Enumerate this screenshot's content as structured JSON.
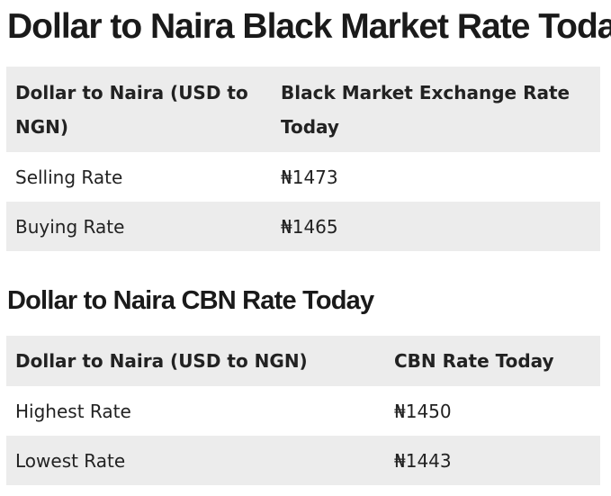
{
  "heading_black_market": "Dollar to Naira Black Market Rate Today",
  "black_market_table": {
    "headers": [
      "Dollar to Naira (USD to NGN)",
      "Black Market Exchange Rate Today"
    ],
    "rows": [
      {
        "label": "Selling Rate",
        "value": "₦1473"
      },
      {
        "label": "Buying Rate",
        "value": "₦1465"
      }
    ]
  },
  "heading_cbn": "Dollar to Naira CBN Rate Today",
  "cbn_table": {
    "headers": [
      "Dollar to Naira (USD to NGN)",
      "CBN Rate Today"
    ],
    "rows": [
      {
        "label": "Highest Rate",
        "value": "₦1450"
      },
      {
        "label": "Lowest Rate",
        "value": "₦1443"
      }
    ]
  }
}
